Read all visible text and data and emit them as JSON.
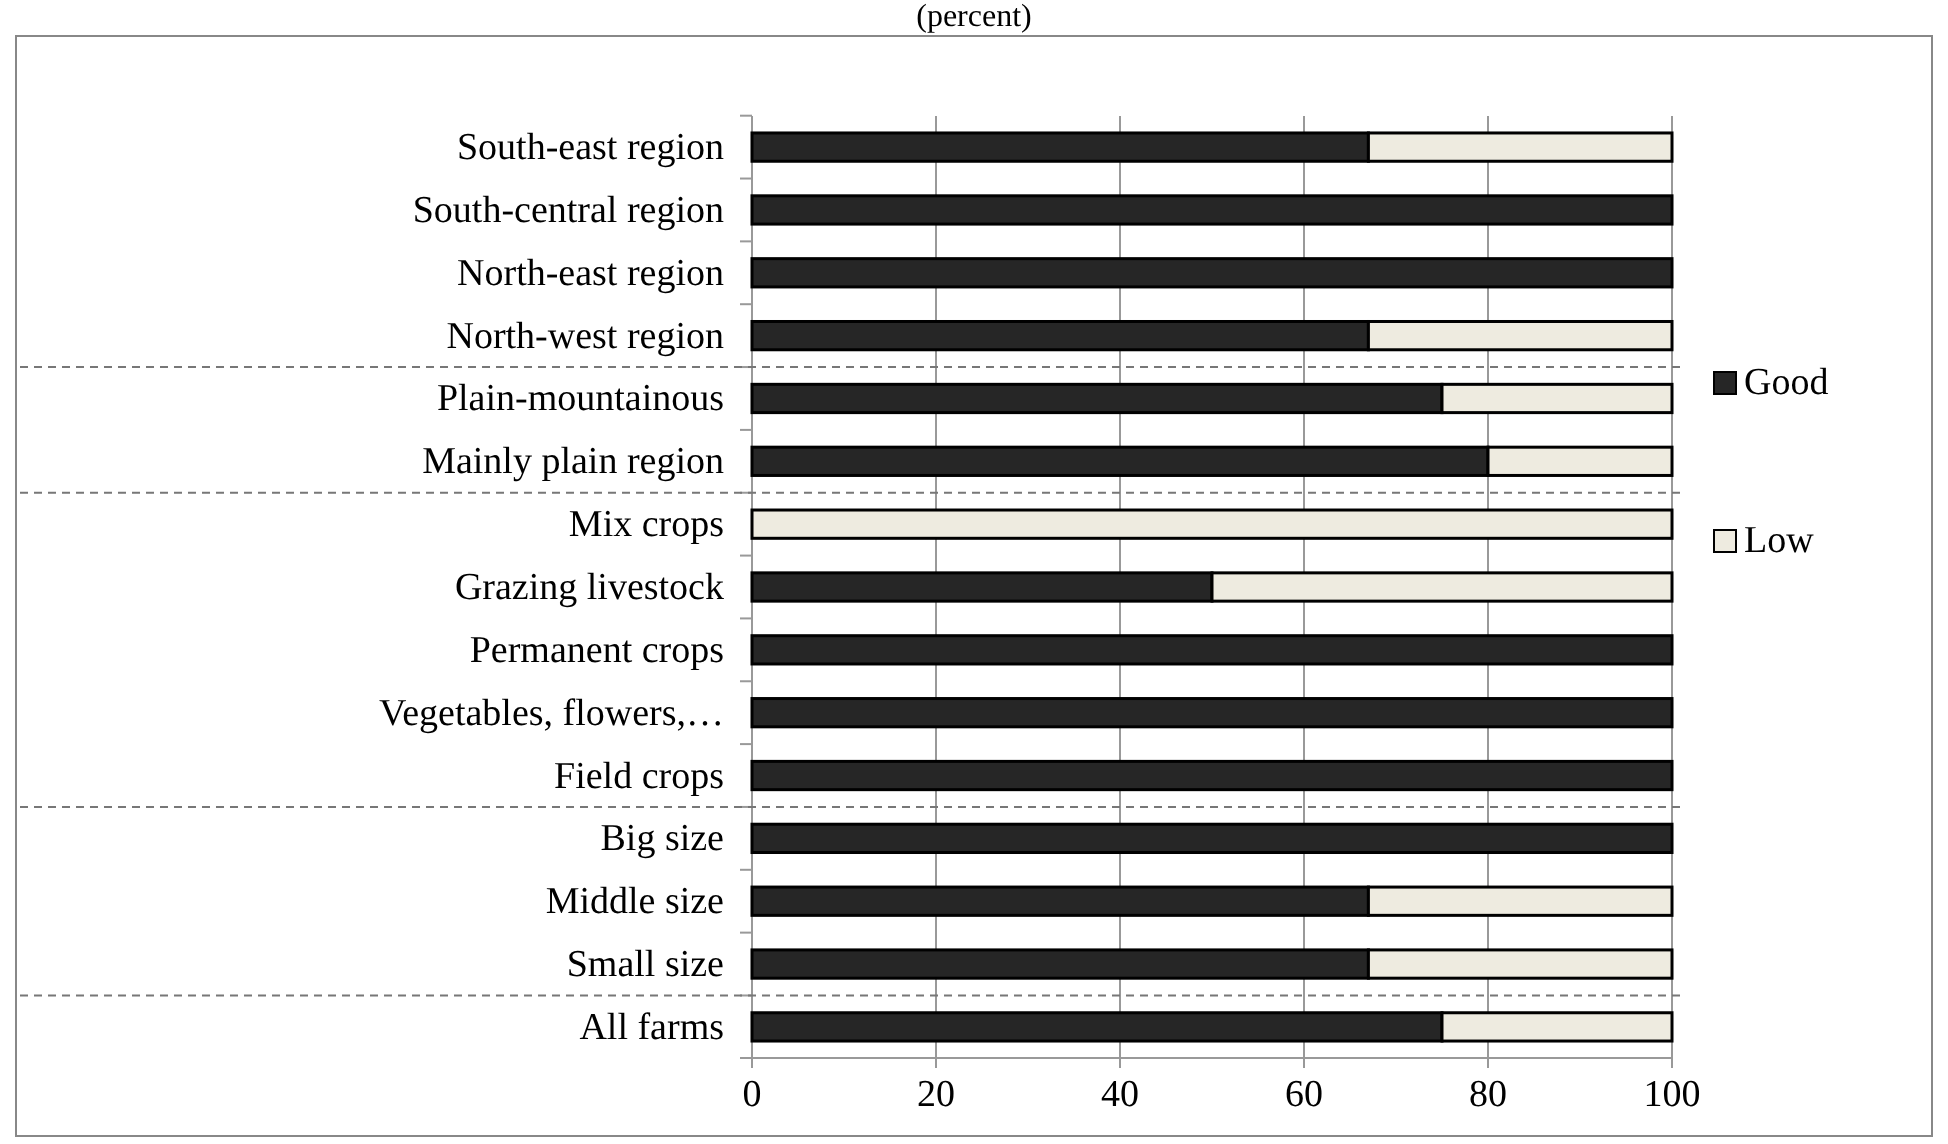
{
  "chart_data": {
    "type": "bar",
    "orientation": "horizontal",
    "stacked": true,
    "title": "(percent)",
    "categories": [
      "South-east region",
      "South-central region",
      "North-east region",
      "North-west region",
      "Plain-mountainous",
      "Mainly plain region",
      "Mix crops",
      "Grazing livestock",
      "Permanent crops",
      "Vegetables, flowers,…",
      "Field crops",
      "Big size",
      "Middle size",
      "Small size",
      "All farms"
    ],
    "series": [
      {
        "name": "Good",
        "color": "#262626",
        "values": [
          67,
          100,
          100,
          67,
          75,
          80,
          0,
          50,
          100,
          100,
          100,
          100,
          67,
          67,
          75
        ]
      },
      {
        "name": "Low",
        "color": "#eeebe0",
        "values": [
          33,
          0,
          0,
          33,
          25,
          20,
          100,
          50,
          0,
          0,
          0,
          0,
          33,
          33,
          25
        ]
      }
    ],
    "xlim": [
      0,
      100
    ],
    "xticks": [
      0,
      20,
      40,
      60,
      80,
      100
    ],
    "grid": "x",
    "legend": "right"
  }
}
